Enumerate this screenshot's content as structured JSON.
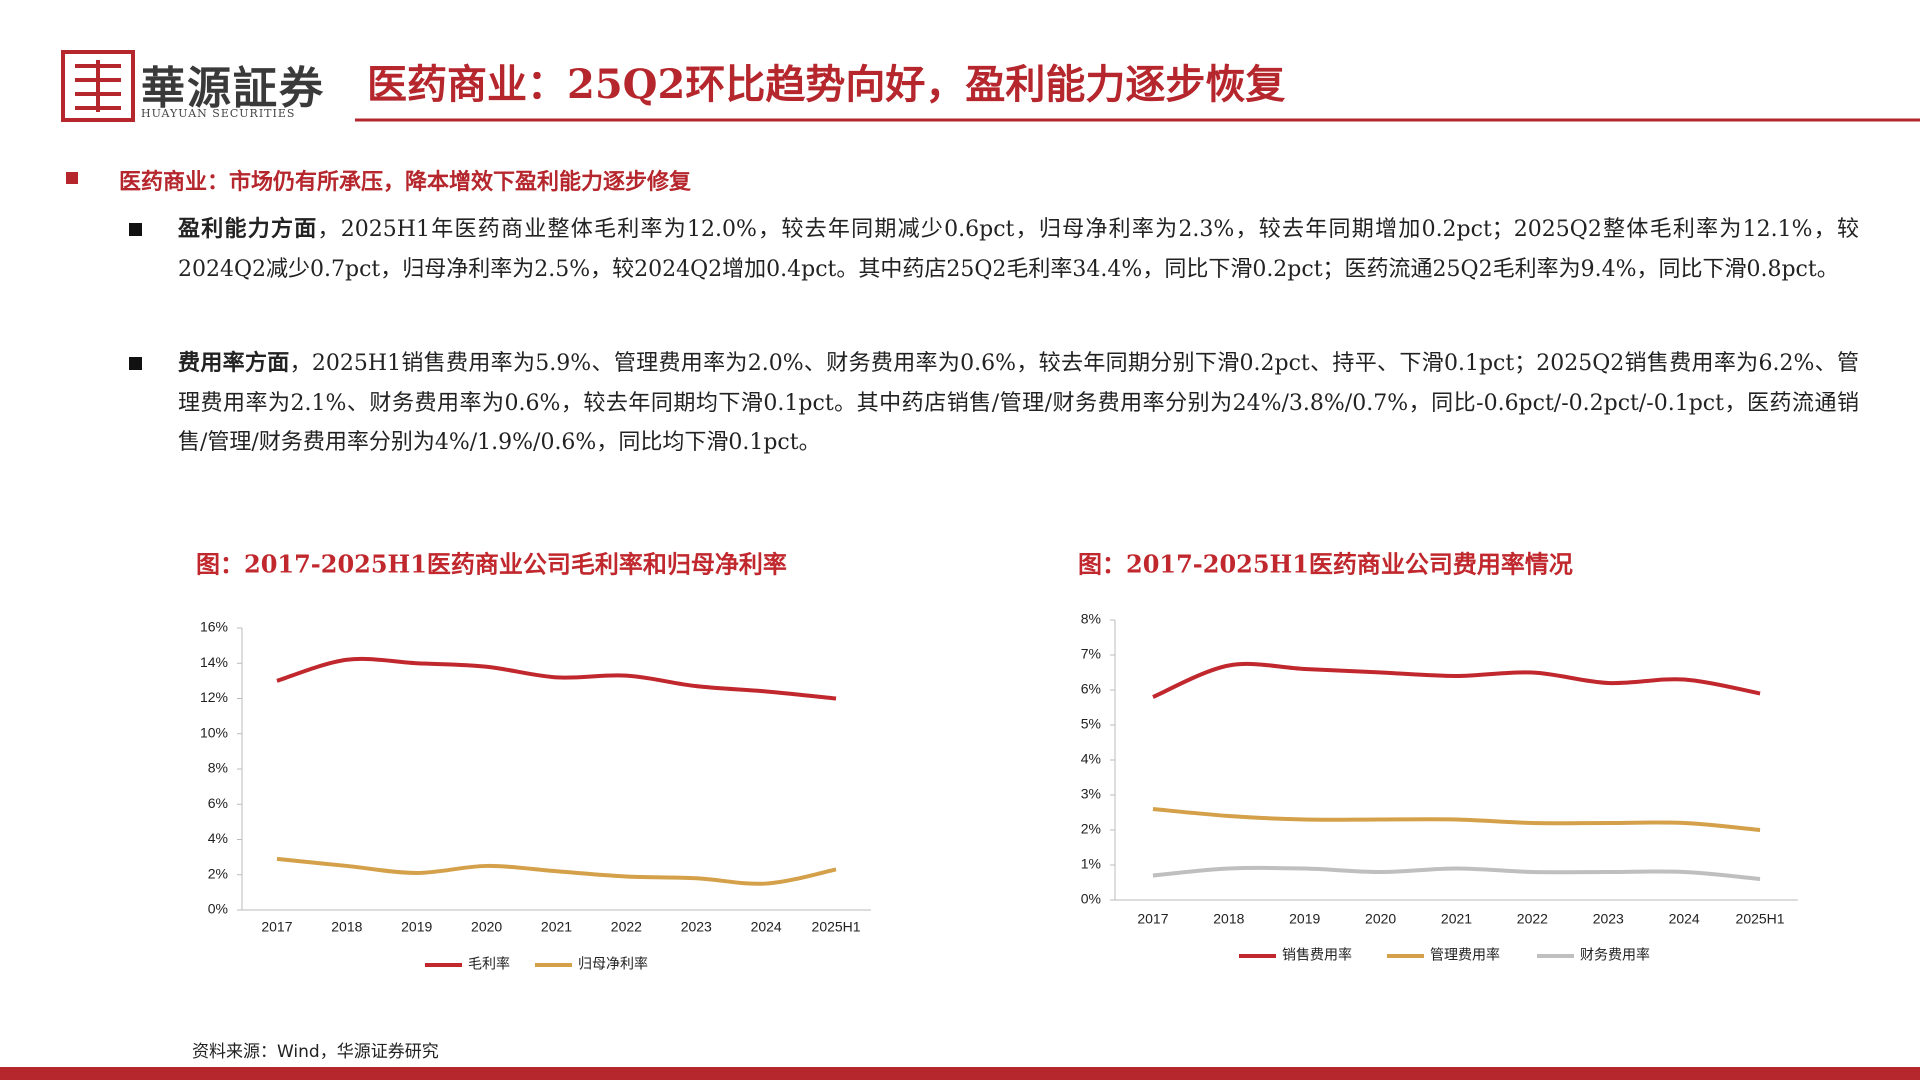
{
  "header": {
    "brand": "華源証券",
    "brand_en": "HUAYUAN SECURITIES",
    "title": "医药商业：25Q2环比趋势向好，盈利能力逐步恢复"
  },
  "section": {
    "heading": "医药商业：市场仍有所承压，降本增效下盈利能力逐步修复",
    "bullets": [
      {
        "lead": "盈利能力方面",
        "text": "，2025H1年医药商业整体毛利率为12.0%，较去年同期减少0.6pct，归母净利率为2.3%，较去年同期增加0.2pct；2025Q2整体毛利率为12.1%，较2024Q2减少0.7pct，归母净利率为2.5%，较2024Q2增加0.4pct。其中药店25Q2毛利率34.4%，同比下滑0.2pct；医药流通25Q2毛利率为9.4%，同比下滑0.8pct。"
      },
      {
        "lead": "费用率方面",
        "text": "，2025H1销售费用率为5.9%、管理费用率为2.0%、财务费用率为0.6%，较去年同期分别下滑0.2pct、持平、下滑0.1pct；2025Q2销售费用率为6.2%、管理费用率为2.1%、财务费用率为0.6%，较去年同期均下滑0.1pct。其中药店销售/管理/财务费用率分别为24%/3.8%/0.7%，同比-0.6pct/-0.2pct/-0.1pct，医药流通销售/管理/财务费用率分别为4%/1.9%/0.6%，同比均下滑0.1pct。"
      }
    ]
  },
  "chart_data": [
    {
      "type": "line",
      "title": "图：2017-2025H1医药商业公司毛利率和归母净利率",
      "categories": [
        "2017",
        "2018",
        "2019",
        "2020",
        "2021",
        "2022",
        "2023",
        "2024",
        "2025H1"
      ],
      "series": [
        {
          "name": "毛利率",
          "color": "#c0282e",
          "values": [
            13.0,
            14.2,
            14.0,
            13.8,
            13.2,
            13.3,
            12.7,
            12.4,
            12.0
          ]
        },
        {
          "name": "归母净利率",
          "color": "#d4a04a",
          "values": [
            2.9,
            2.5,
            2.1,
            2.5,
            2.2,
            1.9,
            1.8,
            1.5,
            2.3
          ]
        }
      ],
      "ylim": [
        0,
        16
      ],
      "yticks": [
        {
          "value": 0,
          "label": "0%"
        },
        {
          "value": 2,
          "label": "2%"
        },
        {
          "value": 4,
          "label": "4%"
        },
        {
          "value": 6,
          "label": "6%"
        },
        {
          "value": 8,
          "label": "8%"
        },
        {
          "value": 10,
          "label": "10%"
        },
        {
          "value": 12,
          "label": "12%"
        },
        {
          "value": 14,
          "label": "14%"
        },
        {
          "value": 16,
          "label": "16%"
        }
      ]
    },
    {
      "type": "line",
      "title": "图：2017-2025H1医药商业公司费用率情况",
      "categories": [
        "2017",
        "2018",
        "2019",
        "2020",
        "2021",
        "2022",
        "2023",
        "2024",
        "2025H1"
      ],
      "series": [
        {
          "name": "销售费用率",
          "color": "#c0282e",
          "values": [
            5.8,
            6.7,
            6.6,
            6.5,
            6.4,
            6.5,
            6.2,
            6.3,
            5.9
          ]
        },
        {
          "name": "管理费用率",
          "color": "#d4a04a",
          "values": [
            2.6,
            2.4,
            2.3,
            2.3,
            2.3,
            2.2,
            2.2,
            2.2,
            2.0
          ]
        },
        {
          "name": "财务费用率",
          "color": "#bfbfbf",
          "values": [
            0.7,
            0.9,
            0.9,
            0.8,
            0.9,
            0.8,
            0.8,
            0.8,
            0.6
          ]
        }
      ],
      "ylim": [
        0,
        8
      ],
      "yticks": [
        {
          "value": 0,
          "label": "0%"
        },
        {
          "value": 1,
          "label": "1%"
        },
        {
          "value": 2,
          "label": "2%"
        },
        {
          "value": 3,
          "label": "3%"
        },
        {
          "value": 4,
          "label": "4%"
        },
        {
          "value": 5,
          "label": "5%"
        },
        {
          "value": 6,
          "label": "6%"
        },
        {
          "value": 7,
          "label": "7%"
        },
        {
          "value": 8,
          "label": "8%"
        }
      ]
    }
  ],
  "source": "资料来源：Wind，华源证券研究"
}
